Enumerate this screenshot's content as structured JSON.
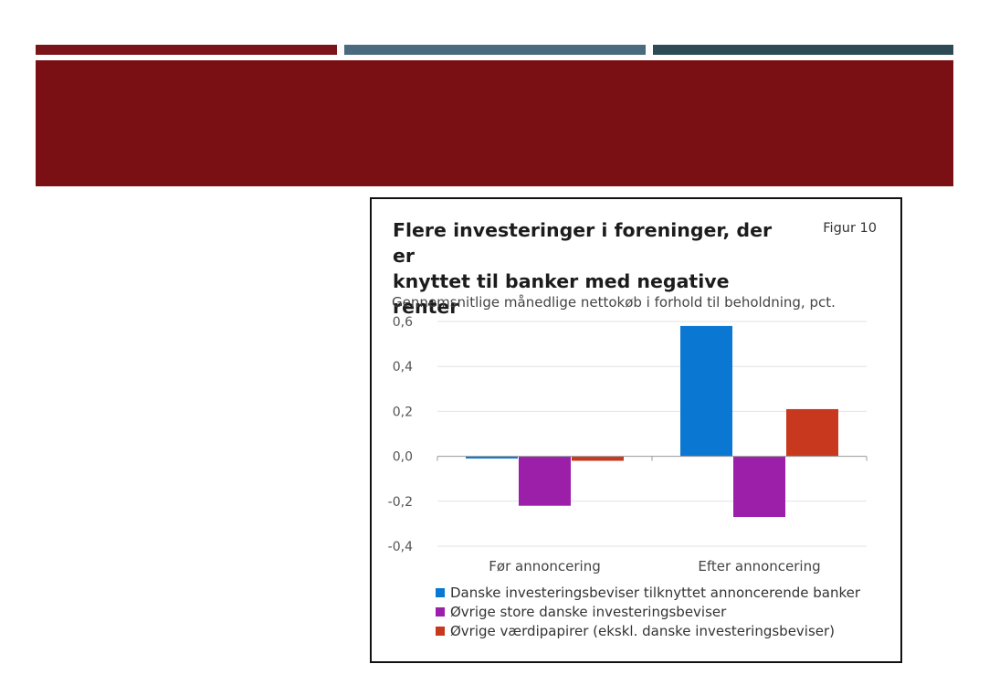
{
  "colors": {
    "stripe_1": "#7a1418",
    "stripe_2": "#4a6a7d",
    "stripe_3": "#2c4b57",
    "banner": "#7a1014",
    "series": [
      "#0a78d2",
      "#9b1fa8",
      "#c8381e"
    ]
  },
  "figure": {
    "title_line_1": "Flere investeringer i foreninger, der er",
    "title_line_2": "knyttet til banker med negative renter",
    "label": "Figur 10",
    "subtitle": "Gennemsnitlige månedlige nettokøb i forhold til beholdning, pct."
  },
  "chart_data": {
    "type": "bar",
    "title": "Flere investeringer i foreninger, der er knyttet til banker med negative renter",
    "ylabel": "Gennemsnitlige månedlige nettokøb i forhold til beholdning, pct.",
    "categories": [
      "Før annoncering",
      "Efter annoncering"
    ],
    "series": [
      {
        "name": "Danske investeringsbeviser tilknyttet annoncerende banker",
        "values": [
          -0.01,
          0.58
        ]
      },
      {
        "name": "Øvrige store danske investeringsbeviser",
        "values": [
          -0.22,
          -0.27
        ]
      },
      {
        "name": "Øvrige værdipapirer (ekskl. danske investeringsbeviser)",
        "values": [
          -0.02,
          0.21
        ]
      }
    ],
    "ylim": [
      -0.4,
      0.6
    ],
    "yticks": [
      "0,6",
      "0,4",
      "0,2",
      "0,0",
      "-0,2",
      "-0,4"
    ],
    "ytick_values": [
      0.6,
      0.4,
      0.2,
      0.0,
      -0.2,
      -0.4
    ],
    "grid": true,
    "legend_position": "bottom"
  }
}
